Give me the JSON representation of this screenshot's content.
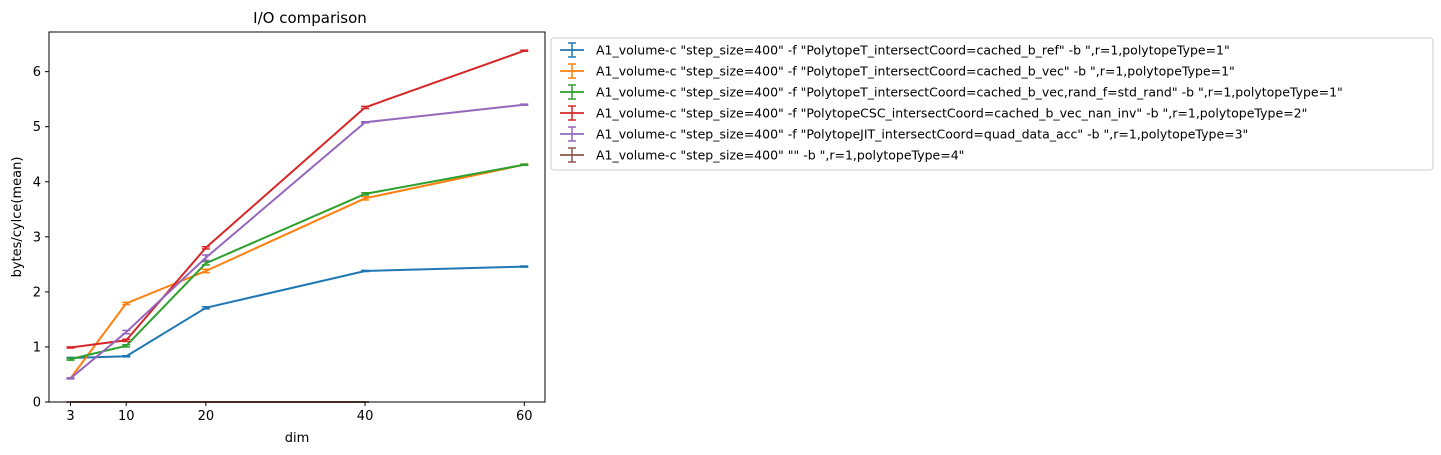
{
  "chart_data": {
    "type": "line",
    "title": "I/O comparison",
    "xlabel": "dim",
    "ylabel": "bytes/cylce(mean)",
    "x": [
      3,
      10,
      20,
      40,
      60
    ],
    "xticks": [
      "3",
      "10",
      "20",
      "40",
      "60"
    ],
    "yticks": [
      "0",
      "1",
      "2",
      "3",
      "4",
      "5",
      "6"
    ],
    "xlim": [
      0.3,
      62.6
    ],
    "ylim": [
      0,
      6.72
    ],
    "grid": false,
    "legend_position": "outside-right",
    "error_bars": true,
    "series": [
      {
        "name": "A1_volume-c \"step_size=400\" -f \"PolytopeT_intersectCoord=cached_b_ref\" -b \",r=1,polytopeType=1\"",
        "color": "#1f77b4",
        "x": [
          3,
          10,
          20,
          40,
          60
        ],
        "values": [
          0.8,
          0.83,
          1.71,
          2.38,
          2.46
        ],
        "errors": [
          0.01,
          0.01,
          0.02,
          0.01,
          0.01
        ]
      },
      {
        "name": "A1_volume-c \"step_size=400\" -f \"PolytopeT_intersectCoord=cached_b_vec\" -b \",r=1,polytopeType=1\"",
        "color": "#ff7f0e",
        "x": [
          3,
          10,
          20,
          40,
          60
        ],
        "values": [
          0.43,
          1.79,
          2.38,
          3.7,
          4.31
        ],
        "errors": [
          0.01,
          0.02,
          0.03,
          0.03,
          0.01
        ]
      },
      {
        "name": "A1_volume-c \"step_size=400\" -f \"PolytopeT_intersectCoord=cached_b_vec,rand_f=std_rand\" -b \",r=1,polytopeType=1\"",
        "color": "#2ca02c",
        "x": [
          3,
          10,
          20,
          40,
          60
        ],
        "values": [
          0.78,
          1.02,
          2.52,
          3.78,
          4.31
        ],
        "errors": [
          0.02,
          0.02,
          0.03,
          0.02,
          0.01
        ]
      },
      {
        "name": "A1_volume-c \"step_size=400\" -f \"PolytopeCSC_intersectCoord=cached_b_vec_nan_inv\" -b \",r=1,polytopeType=2\"",
        "color": "#d62728",
        "x": [
          3,
          10,
          20,
          40,
          60
        ],
        "values": [
          0.99,
          1.12,
          2.8,
          5.35,
          6.38
        ],
        "errors": [
          0.01,
          0.02,
          0.02,
          0.02,
          0.01
        ]
      },
      {
        "name": "A1_volume-c \"step_size=400\" -f \"PolytopeJIT_intersectCoord=quad_data_acc\" -b \",r=1,polytopeType=3\"",
        "color": "#9467bd",
        "x": [
          3,
          10,
          20,
          40,
          60
        ],
        "values": [
          0.43,
          1.27,
          2.62,
          5.08,
          5.4
        ],
        "errors": [
          0.01,
          0.03,
          0.05,
          0.01,
          0.01
        ]
      },
      {
        "name": "A1_volume-c \"step_size=400\"  \"\" -b \",r=1,polytopeType=4\"",
        "color": "#8c564b",
        "x": [
          3,
          10,
          20,
          40
        ],
        "values": [
          0.0,
          0.0,
          0.0,
          0.0
        ],
        "errors": [
          0.0,
          0.0,
          0.0,
          0.0
        ]
      }
    ]
  }
}
